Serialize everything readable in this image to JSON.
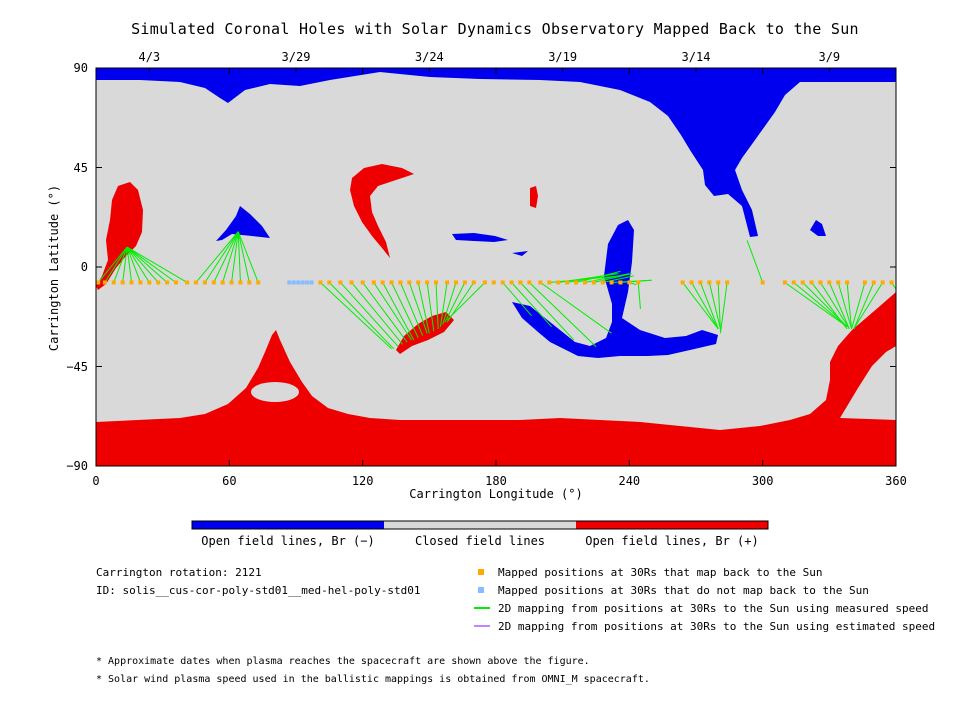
{
  "title": "Simulated Coronal Holes with Solar Dynamics Observatory Mapped Back to the Sun",
  "top_dates": [
    {
      "label": "4/3",
      "lon": 24
    },
    {
      "label": "3/29",
      "lon": 90
    },
    {
      "label": "3/24",
      "lon": 150
    },
    {
      "label": "3/19",
      "lon": 210
    },
    {
      "label": "3/14",
      "lon": 270
    },
    {
      "label": "3/9",
      "lon": 330
    }
  ],
  "colors": {
    "open_negative": "#0000ee",
    "closed": "#d9d9d9",
    "open_positive": "#ee0000",
    "mapped": "#ffaa00",
    "unmapped": "#88bbff",
    "measured_line": "#00ee00",
    "estimated_line": "#bb88ff"
  },
  "colorbar": {
    "labels": [
      "Open field lines, Br (−)",
      "Closed field lines",
      "Open field lines, Br (+)"
    ]
  },
  "info": {
    "rotation": "Carrington rotation: 2121",
    "id": "ID: solis__cus-cor-poly-std01__med-hel-poly-std01"
  },
  "legend": [
    {
      "kind": "square",
      "color": "#ffaa00",
      "text": "Mapped positions at 30Rs that map back to the Sun"
    },
    {
      "kind": "square",
      "color": "#88bbff",
      "text": "Mapped positions at 30Rs that do not map back to the Sun"
    },
    {
      "kind": "line",
      "color": "#00ee00",
      "text": "2D mapping from positions at 30Rs to the Sun using measured speed"
    },
    {
      "kind": "line",
      "color": "#bb88ff",
      "text": "2D mapping from positions at 30Rs to the Sun using estimated speed"
    }
  ],
  "notes": [
    "* Approximate dates when plasma reaches the spacecraft are shown above the figure.",
    "* Solar wind plasma speed used in the ballistic mappings is obtained from OMNI_M spacecraft."
  ],
  "chart_data": {
    "type": "scatter",
    "title": "Simulated Coronal Holes with Solar Dynamics Observatory Mapped Back to the Sun",
    "xlabel": "Carrington Longitude (°)",
    "ylabel": "Carrington Latitude (°)",
    "xlim": [
      0,
      360
    ],
    "ylim": [
      -90,
      90
    ],
    "xticks": [
      0,
      60,
      120,
      180,
      240,
      300,
      360
    ],
    "yticks": [
      90,
      45,
      0,
      -45,
      -90
    ],
    "xtick_labels": [
      "0",
      "60",
      "120",
      "180",
      "240",
      "300",
      "360"
    ],
    "ytick_labels": [
      "90",
      "45",
      "0",
      "−45",
      "−90"
    ],
    "sample_latitude": -7,
    "mapped_longitudes": [
      1,
      4,
      8,
      12,
      16,
      20,
      24,
      28,
      32,
      36,
      41,
      45,
      49,
      53,
      57,
      61,
      65,
      69,
      73,
      101,
      105,
      110,
      115,
      120,
      125,
      129,
      133,
      137,
      141,
      145,
      149,
      153,
      158,
      162,
      166,
      170,
      175,
      179,
      183,
      187,
      191,
      195,
      200,
      204,
      208,
      212,
      216,
      220,
      224,
      228,
      232,
      236,
      240,
      244,
      264,
      268,
      272,
      276,
      280,
      284,
      300,
      310,
      314,
      318,
      322,
      326,
      330,
      334,
      338,
      346,
      350,
      354,
      358
    ],
    "unmapped_longitudes": [
      87,
      89,
      91,
      93,
      95,
      97
    ],
    "mappings_measured": [
      [
        1,
        -7,
        14,
        9
      ],
      [
        4,
        -7,
        14,
        9
      ],
      [
        8,
        -7,
        14,
        9
      ],
      [
        12,
        -7,
        14,
        9
      ],
      [
        16,
        -7,
        14,
        9
      ],
      [
        20,
        -7,
        14,
        9
      ],
      [
        24,
        -7,
        14,
        9
      ],
      [
        28,
        -7,
        14,
        9
      ],
      [
        32,
        -7,
        14,
        9
      ],
      [
        36,
        -7,
        14,
        9
      ],
      [
        41,
        -7,
        14,
        9
      ],
      [
        45,
        -7,
        64,
        16
      ],
      [
        49,
        -7,
        64,
        16
      ],
      [
        53,
        -7,
        64,
        16
      ],
      [
        57,
        -7,
        64,
        16
      ],
      [
        61,
        -7,
        64,
        16
      ],
      [
        65,
        -7,
        64,
        16
      ],
      [
        69,
        -7,
        64,
        16
      ],
      [
        73,
        -7,
        64,
        16
      ],
      [
        101,
        -7,
        133,
        -37
      ],
      [
        105,
        -7,
        134,
        -37
      ],
      [
        110,
        -7,
        136,
        -36
      ],
      [
        115,
        -7,
        138,
        -35
      ],
      [
        120,
        -7,
        140,
        -34
      ],
      [
        125,
        -7,
        142,
        -33
      ],
      [
        129,
        -7,
        143,
        -33
      ],
      [
        133,
        -7,
        145,
        -32
      ],
      [
        137,
        -7,
        147,
        -31
      ],
      [
        141,
        -7,
        149,
        -30
      ],
      [
        145,
        -7,
        150,
        -30
      ],
      [
        149,
        -7,
        152,
        -29
      ],
      [
        153,
        -7,
        154,
        -28
      ],
      [
        158,
        -7,
        155,
        -27
      ],
      [
        162,
        -7,
        156,
        -26
      ],
      [
        166,
        -7,
        157,
        -25
      ],
      [
        170,
        -7,
        158,
        -25
      ],
      [
        175,
        -7,
        158,
        -24
      ],
      [
        183,
        -7,
        196,
        -22
      ],
      [
        187,
        -7,
        205,
        -27
      ],
      [
        191,
        -7,
        215,
        -33
      ],
      [
        195,
        -7,
        225,
        -36
      ],
      [
        200,
        -7,
        232,
        -30
      ],
      [
        204,
        -7,
        236,
        -4
      ],
      [
        208,
        -7,
        235,
        -3
      ],
      [
        212,
        -7,
        234,
        -3
      ],
      [
        216,
        -7,
        236,
        -2
      ],
      [
        220,
        -7,
        240,
        -3
      ],
      [
        224,
        -7,
        241,
        -3
      ],
      [
        228,
        -7,
        242,
        -4
      ],
      [
        232,
        -7,
        250,
        -6
      ],
      [
        236,
        -7,
        250,
        -6
      ],
      [
        240,
        -7,
        243,
        -8
      ],
      [
        244,
        -7,
        245,
        -19
      ],
      [
        264,
        -7,
        280,
        -28
      ],
      [
        268,
        -7,
        280,
        -28
      ],
      [
        272,
        -7,
        280,
        -28
      ],
      [
        276,
        -7,
        281,
        -28
      ],
      [
        280,
        -7,
        281,
        -29
      ],
      [
        284,
        -7,
        281,
        -30
      ],
      [
        300,
        -7,
        293,
        12
      ],
      [
        310,
        -7,
        338,
        -27
      ],
      [
        314,
        -7,
        338,
        -27
      ],
      [
        318,
        -7,
        338,
        -27
      ],
      [
        322,
        -7,
        338,
        -28
      ],
      [
        326,
        -7,
        339,
        -28
      ],
      [
        330,
        -7,
        339,
        -28
      ],
      [
        334,
        -7,
        340,
        -28
      ],
      [
        338,
        -7,
        340,
        -28
      ],
      [
        346,
        -7,
        340,
        -28
      ],
      [
        350,
        -7,
        341,
        -28
      ],
      [
        354,
        -7,
        341,
        -28
      ],
      [
        358,
        -7,
        360,
        -10
      ]
    ]
  }
}
